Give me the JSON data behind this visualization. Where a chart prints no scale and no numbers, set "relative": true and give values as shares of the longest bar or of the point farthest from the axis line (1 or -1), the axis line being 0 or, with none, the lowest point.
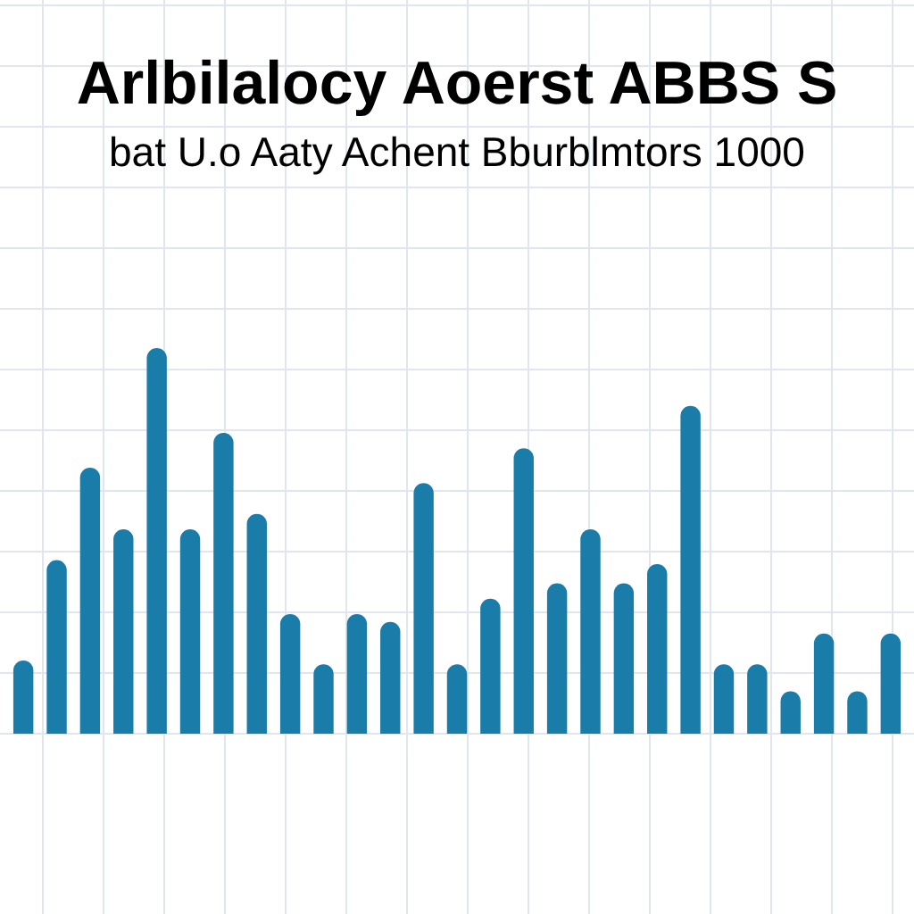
{
  "chart_data": {
    "type": "bar",
    "title": "Arlbilalocy Aoerst ABBS S",
    "subtitle": "bat U.o Aaty Achent Bburblmtors 1000",
    "relative": true,
    "grid": true,
    "color": "#1a7ca8",
    "categories": [
      null,
      null,
      null,
      null,
      null,
      null,
      null,
      null,
      null,
      null,
      null,
      null,
      null,
      null,
      null,
      null,
      null,
      null,
      null,
      null,
      null,
      null,
      null,
      null,
      null,
      null,
      null
    ],
    "values": [
      0.19,
      0.45,
      0.69,
      0.53,
      1,
      0.53,
      0.78,
      0.57,
      0.31,
      0.18,
      0.31,
      0.29,
      0.65,
      0.18,
      0.35,
      0.74,
      0.39,
      0.53,
      0.39,
      0.44,
      0.85,
      0.18,
      0.18,
      0.11,
      0.26,
      0.11,
      0.26
    ]
  }
}
